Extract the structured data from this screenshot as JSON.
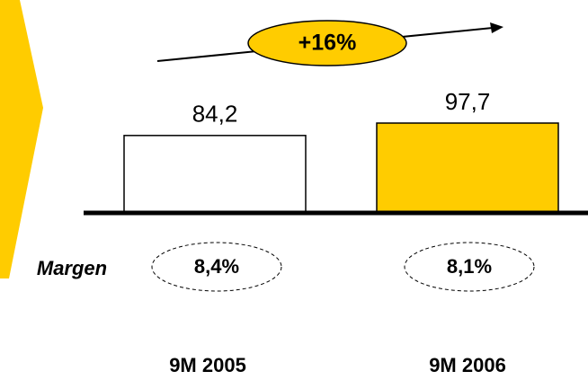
{
  "chart_data": {
    "type": "bar",
    "categories": [
      "9M 2005",
      "9M 2006"
    ],
    "values": [
      84.2,
      97.7
    ],
    "value_labels": [
      "84,2",
      "97,7"
    ],
    "colors": [
      "#ffffff",
      "#ffcc00"
    ],
    "annotation": "+16%",
    "margin_title": "Margen",
    "margins": [
      8.4,
      8.1
    ],
    "margin_labels": [
      "8,4%",
      "8,1%"
    ]
  }
}
